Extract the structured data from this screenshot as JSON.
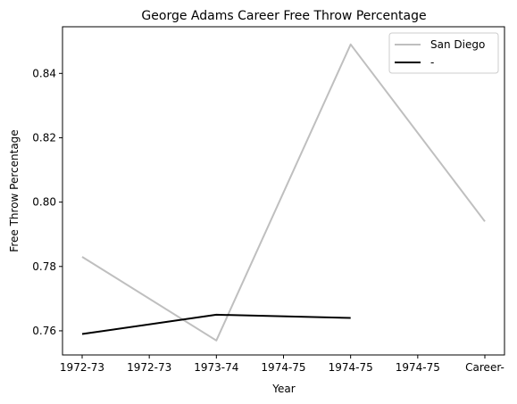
{
  "chart_data": {
    "type": "line",
    "title": "George Adams  Career Free Throw Percentage",
    "xlabel": "Year",
    "ylabel": "Free Throw Percentage",
    "categories": [
      "1972-73",
      "1972-73",
      "1973-74",
      "1974-75",
      "1974-75",
      "1974-75",
      "Career-"
    ],
    "ylim": [
      0.7525,
      0.8545
    ],
    "yticks": [
      0.76,
      0.78,
      0.8,
      0.82,
      0.84
    ],
    "ytick_labels": [
      "0.76",
      "0.78",
      "0.80",
      "0.82",
      "0.84"
    ],
    "grid": false,
    "legend_position": "top-right",
    "series": [
      {
        "name": "San Diego",
        "color": "#bfbfbf",
        "points": [
          {
            "x": 0,
            "y": 0.783
          },
          {
            "x": 2,
            "y": 0.757
          },
          {
            "x": 4,
            "y": 0.849
          },
          {
            "x": 6,
            "y": 0.794
          }
        ]
      },
      {
        "name": "-",
        "color": "#000000",
        "points": [
          {
            "x": 0,
            "y": 0.759
          },
          {
            "x": 2,
            "y": 0.765
          },
          {
            "x": 4,
            "y": 0.764
          }
        ]
      }
    ]
  }
}
